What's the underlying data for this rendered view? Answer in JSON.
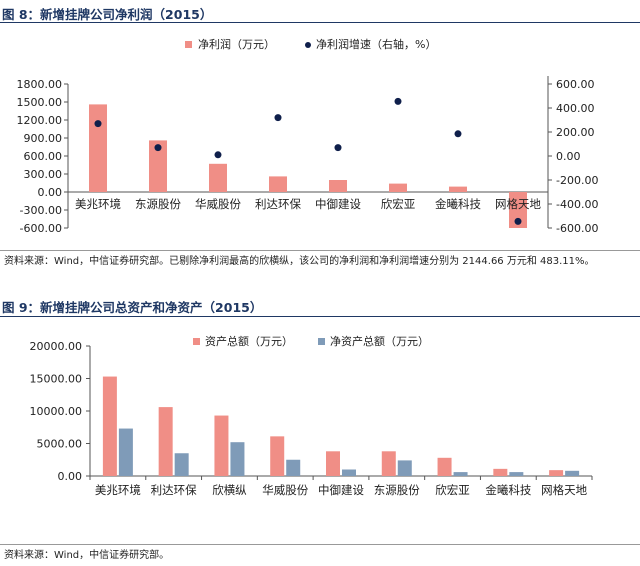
{
  "figures": [
    {
      "title": "图 8：新增挂牌公司净利润（2015）",
      "note": "资料来源：Wind，中信证券研究部。已剔除净利润最高的欣横纵，该公司的净利润和净利润增速分别为 2144.66 万元和 483.11%。"
    },
    {
      "title": "图 9：新增挂牌公司总资产和净资产（2015）",
      "note": "资料来源：Wind，中信证券研究部。"
    }
  ],
  "colors": {
    "bar_main": "#f08e86",
    "bar_secondary": "#7f9bb8",
    "dot": "#0f1f4b",
    "title": "#1f3864"
  },
  "chart_data": [
    {
      "type": "bar",
      "categories": [
        "美兆环境",
        "东源股份",
        "华威股份",
        "利达环保",
        "中御建设",
        "欣宏亚",
        "金曦科技",
        "网格天地"
      ],
      "series": [
        {
          "name": "净利润（万元）",
          "type": "bar",
          "axis": "left",
          "values": [
            1460,
            860,
            470,
            260,
            200,
            140,
            90,
            -600
          ]
        },
        {
          "name": "净利润增速（右轴，%）",
          "type": "scatter",
          "axis": "right",
          "values": [
            270,
            70,
            10,
            320,
            70,
            455,
            185,
            -545
          ]
        }
      ],
      "y_left": {
        "min": -600,
        "max": 1800,
        "ticks": [
          "1800.00",
          "1500.00",
          "1200.00",
          "900.00",
          "600.00",
          "300.00",
          "0.00",
          "-300.00",
          "-600.00"
        ]
      },
      "y_right": {
        "min": -600,
        "max": 600,
        "ticks": [
          "600.00",
          "400.00",
          "200.00",
          "0.00",
          "-200.00",
          "-400.00",
          "-600.00"
        ]
      },
      "legend": "top"
    },
    {
      "type": "bar",
      "categories": [
        "美兆环境",
        "利达环保",
        "欣横纵",
        "华威股份",
        "中御建设",
        "东源股份",
        "欣宏亚",
        "金曦科技",
        "网格天地"
      ],
      "series": [
        {
          "name": "资产总额（万元）",
          "values": [
            15300,
            10600,
            9300,
            6100,
            3800,
            3800,
            2800,
            1100,
            900
          ]
        },
        {
          "name": "净资产总额（万元）",
          "values": [
            7300,
            3500,
            5200,
            2500,
            1000,
            2400,
            600,
            600,
            800
          ]
        }
      ],
      "y": {
        "min": 0,
        "max": 20000,
        "ticks": [
          "20000.00",
          "15000.00",
          "10000.00",
          "5000.00",
          "0.00"
        ]
      },
      "legend": "top"
    }
  ]
}
